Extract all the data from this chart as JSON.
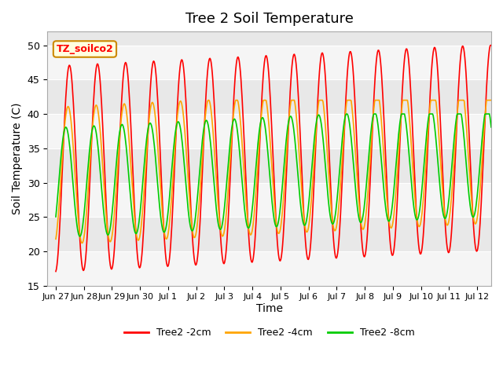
{
  "title": "Tree 2 Soil Temperature",
  "ylabel": "Soil Temperature (C)",
  "xlabel": "Time",
  "ylim": [
    15,
    52
  ],
  "yticks": [
    15,
    20,
    25,
    30,
    35,
    40,
    45,
    50
  ],
  "annotation_label": "TZ_soilco2",
  "legend_labels": [
    "Tree2 -2cm",
    "Tree2 -4cm",
    "Tree2 -8cm"
  ],
  "line_colors": [
    "#FF0000",
    "#FFA500",
    "#00CC00"
  ],
  "background_color": "#ffffff",
  "plot_bg_color": "#e8e8e8",
  "n_samples": 744,
  "n_days": 15.5,
  "title_fontsize": 13,
  "label_fontsize": 10,
  "tick_fontsize": 9,
  "xtick_labels": [
    "Jun 27",
    "Jun 28",
    "Jun 29",
    "Jun 30",
    "Jul 1",
    "Jul 2",
    "Jul 3",
    "Jul 4",
    "Jul 5",
    "Jul 6",
    "Jul 7",
    "Jul 8",
    "Jul 9",
    "Jul 10",
    "Jul 11",
    "Jul 12"
  ],
  "xtick_positions": [
    0,
    1,
    2,
    3,
    4,
    5,
    6,
    7,
    8,
    9,
    10,
    11,
    12,
    13,
    14,
    15
  ]
}
